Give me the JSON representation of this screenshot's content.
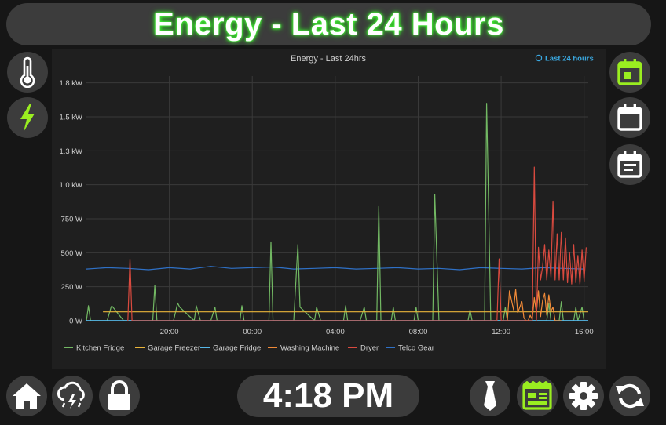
{
  "header": {
    "title": "Energy - Last 24 Hours"
  },
  "left_nav": [
    {
      "icon": "thermometer-icon",
      "active": false
    },
    {
      "icon": "lightning-bolt-icon",
      "active": true
    }
  ],
  "right_nav": [
    {
      "icon": "calendar-today-icon",
      "active": true
    },
    {
      "icon": "calendar-blank-icon",
      "active": false
    },
    {
      "icon": "calendar-text-icon",
      "active": false
    }
  ],
  "bottom_left": [
    {
      "icon": "home-icon"
    },
    {
      "icon": "weather-lightning-rainy-icon"
    },
    {
      "icon": "lock-icon"
    }
  ],
  "bottom_right": [
    {
      "icon": "tie-icon"
    },
    {
      "icon": "view-dashboard-icon",
      "active": true
    },
    {
      "icon": "gear-icon"
    },
    {
      "icon": "refresh-icon"
    }
  ],
  "clock": {
    "time": "4:18 PM"
  },
  "colors": {
    "accent": "#9aee20",
    "kitchen_fridge": "#72b863",
    "garage_freezer": "#e9b43a",
    "garage_fridge": "#56b8e8",
    "washing_machine": "#f08a38",
    "dryer": "#d94a3f",
    "telco_gear": "#2f71c7"
  },
  "chart_data": {
    "type": "line",
    "title": "Energy - Last 24hrs",
    "range_button": "Last 24 hours",
    "ylim": [
      0,
      1800
    ],
    "yticks": [
      0,
      250,
      500,
      750,
      1000,
      1250,
      1500,
      1750
    ],
    "ytick_labels": [
      "0 W",
      "250 W",
      "500 W",
      "750 W",
      "1.0 kW",
      "1.3 kW",
      "1.5 kW",
      "1.8 kW"
    ],
    "xlim": [
      16.0,
      40.2
    ],
    "xticks": [
      20,
      24,
      28,
      32,
      36,
      40
    ],
    "xtick_labels": [
      "20:00",
      "00:00",
      "04:00",
      "08:00",
      "12:00",
      "16:00"
    ],
    "grid": true,
    "legend": "bottom",
    "series": [
      {
        "name": "Kitchen Fridge",
        "x": [
          16.0,
          16.1,
          16.2,
          16.3,
          17.0,
          17.2,
          17.25,
          17.8,
          17.9,
          18.0,
          19.2,
          19.3,
          19.4,
          19.6,
          20.2,
          20.4,
          20.5,
          21.2,
          21.3,
          21.5,
          22.0,
          22.2,
          22.3,
          23.4,
          23.5,
          23.6,
          24.8,
          24.9,
          25.0,
          26.0,
          26.2,
          26.3,
          27.0,
          27.1,
          27.3,
          28.4,
          28.5,
          28.6,
          29.2,
          29.4,
          29.5,
          30.0,
          30.1,
          30.2,
          30.7,
          30.8,
          30.9,
          31.8,
          31.9,
          32.0,
          32.7,
          32.8,
          33.0,
          34.4,
          34.5,
          34.6,
          35.2,
          35.3,
          35.5,
          36.1,
          36.2,
          36.3,
          38.2,
          38.3,
          38.4,
          38.8,
          38.9,
          39.0,
          39.5,
          39.6,
          39.7,
          39.9,
          40.0
        ],
        "y": [
          0,
          110,
          0,
          0,
          0,
          105,
          105,
          0,
          0,
          0,
          0,
          260,
          0,
          0,
          0,
          130,
          100,
          0,
          110,
          0,
          0,
          100,
          0,
          0,
          110,
          0,
          0,
          580,
          0,
          0,
          560,
          100,
          0,
          100,
          0,
          0,
          110,
          0,
          0,
          100,
          0,
          0,
          840,
          0,
          0,
          100,
          0,
          0,
          100,
          0,
          0,
          930,
          0,
          0,
          80,
          0,
          0,
          1600,
          0,
          0,
          100,
          0,
          0,
          130,
          0,
          0,
          140,
          0,
          0,
          100,
          0,
          100,
          0
        ]
      },
      {
        "name": "Garage Freezer",
        "x": [
          16.8,
          40.2
        ],
        "y": [
          65,
          65
        ]
      },
      {
        "name": "Garage Fridge",
        "x": [
          16.0,
          40.2
        ],
        "y": [
          2,
          2
        ]
      },
      {
        "name": "Washing Machine",
        "x": [
          36.3,
          36.4,
          36.6,
          36.7,
          36.8,
          37.0,
          37.1,
          37.2,
          37.3,
          37.4,
          37.5,
          37.6,
          37.7,
          37.8,
          37.9,
          38.0,
          38.1,
          38.2,
          38.3,
          38.4,
          38.5,
          38.6,
          38.7,
          38.8,
          38.9
        ],
        "y": [
          0,
          220,
          80,
          230,
          60,
          140,
          20,
          0,
          0,
          40,
          10,
          170,
          60,
          220,
          30,
          150,
          200,
          40,
          190,
          70,
          100,
          0,
          0,
          0,
          0
        ]
      },
      {
        "name": "Dryer",
        "x": [
          18.0,
          18.1,
          18.2,
          35.8,
          35.9,
          36.0,
          37.5,
          37.6,
          37.7,
          37.8,
          37.9,
          38.0,
          38.1,
          38.2,
          38.3,
          38.4,
          38.5,
          38.6,
          38.7,
          38.8,
          38.9,
          39.0,
          39.1,
          39.2,
          39.3,
          39.4,
          39.5,
          39.6,
          39.7,
          39.8,
          39.9,
          40.0,
          40.1
        ],
        "y": [
          0,
          455,
          0,
          0,
          455,
          0,
          0,
          1130,
          0,
          540,
          300,
          400,
          560,
          300,
          520,
          320,
          880,
          300,
          640,
          300,
          650,
          300,
          610,
          280,
          500,
          270,
          560,
          280,
          480,
          270,
          520,
          290,
          540
        ]
      },
      {
        "name": "Telco Gear",
        "x": [
          16.0,
          17.0,
          18.0,
          19.0,
          20.0,
          21.0,
          22.0,
          23.0,
          24.0,
          25.0,
          26.0,
          27.0,
          28.0,
          29.0,
          30.0,
          31.0,
          32.0,
          33.0,
          34.0,
          35.0,
          36.0,
          37.0,
          38.0,
          39.0,
          40.0
        ],
        "y": [
          380,
          390,
          385,
          375,
          390,
          380,
          400,
          385,
          390,
          395,
          380,
          385,
          390,
          380,
          385,
          390,
          380,
          385,
          375,
          390,
          385,
          380,
          390,
          385,
          380
        ]
      }
    ]
  }
}
